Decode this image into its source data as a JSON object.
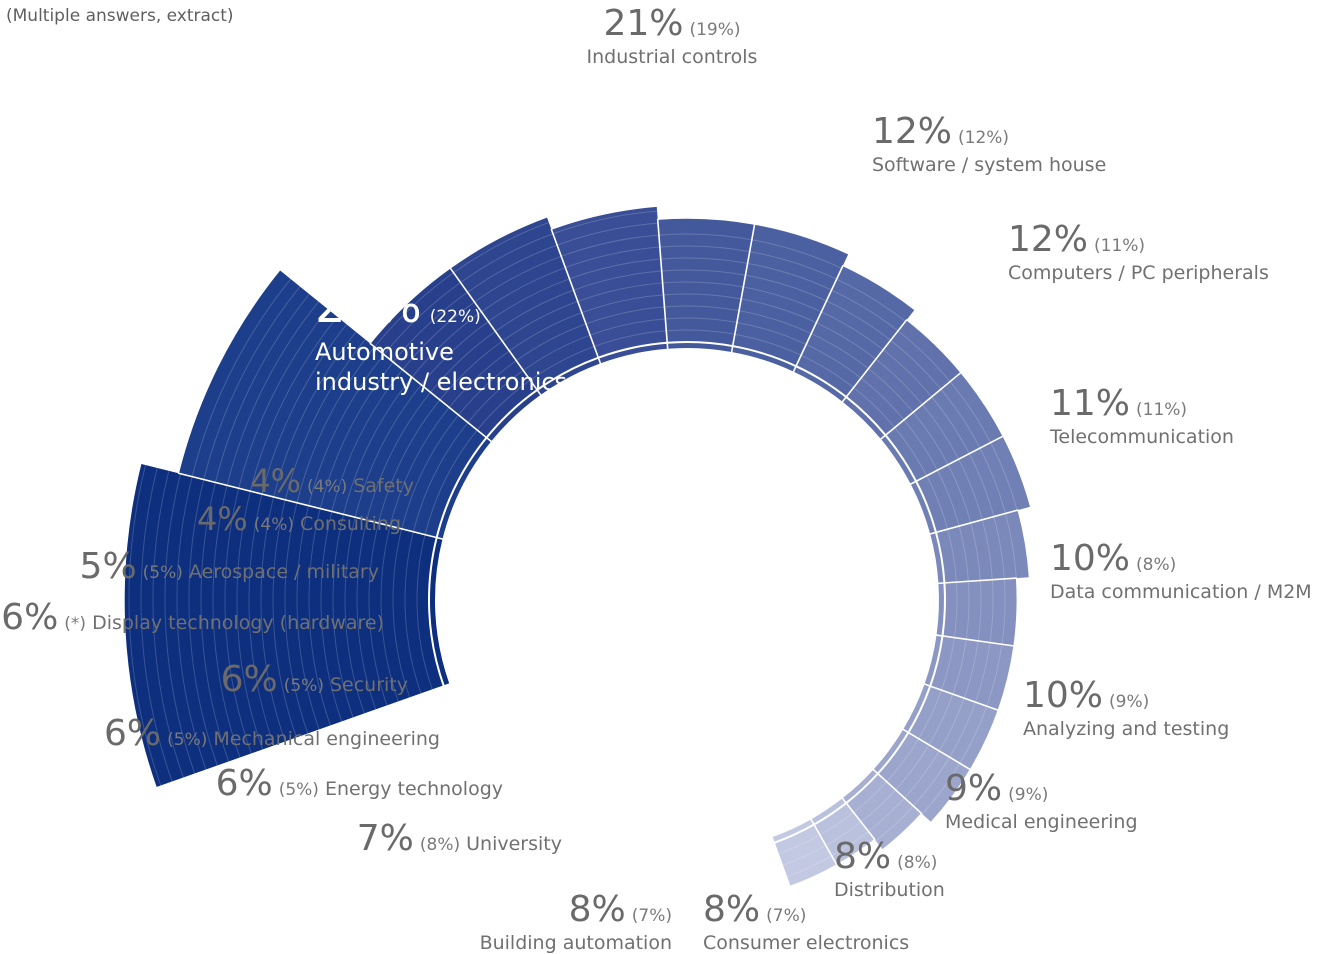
{
  "subtitle": "(Multiple answers, extract)",
  "chart_data": {
    "type": "polar_bar",
    "subtitle": "(Multiple answers, extract)",
    "value_unit": "%",
    "categories": [
      {
        "name": "Automotive industry / electronics",
        "value": 24,
        "previous": "(22%)",
        "color": "#0d2f7e"
      },
      {
        "name": "Industrial controls",
        "value": 21,
        "previous": "(19%)",
        "color": "#1d3e8a"
      },
      {
        "name": "Software / system house",
        "value": 12,
        "previous": "(12%)",
        "color": "#283f8c"
      },
      {
        "name": "Computers / PC peripherals",
        "value": 12,
        "previous": "(11%)",
        "color": "#2e4590"
      },
      {
        "name": "Telecommunication",
        "value": 11,
        "previous": "(11%)",
        "color": "#394e96"
      },
      {
        "name": "Data communication / M2M",
        "value": 10,
        "previous": "(8%)",
        "color": "#44599c"
      },
      {
        "name": "Analyzing and testing",
        "value": 10,
        "previous": "(9%)",
        "color": "#4b60a0"
      },
      {
        "name": "Medical engineering",
        "value": 9,
        "previous": "(9%)",
        "color": "#5569a6"
      },
      {
        "name": "Distribution",
        "value": 8,
        "previous": "(8%)",
        "color": "#6071ab"
      },
      {
        "name": "Consumer electronics",
        "value": 8,
        "previous": "(7%)",
        "color": "#6a7bb1"
      },
      {
        "name": "Building automation",
        "value": 8,
        "previous": "(7%)",
        "color": "#7080b5"
      },
      {
        "name": "University",
        "value": 7,
        "previous": "(8%)",
        "color": "#7b89ba"
      },
      {
        "name": "Energy technology",
        "value": 6,
        "previous": "(5%)",
        "color": "#8490bf"
      },
      {
        "name": "Mechanical engineering",
        "value": 6,
        "previous": "(5%)",
        "color": "#8c98c3"
      },
      {
        "name": "Security",
        "value": 6,
        "previous": "(5%)",
        "color": "#95a0c8"
      },
      {
        "name": "Display technology (hardware)",
        "value": 6,
        "previous": "(*)",
        "color": "#9ca6cc"
      },
      {
        "name": "Aerospace / military",
        "value": 5,
        "previous": "(5%)",
        "color": "#a7b0d2"
      },
      {
        "name": "Consulting",
        "value": 4,
        "previous": "(4%)",
        "color": "#bac1dd"
      },
      {
        "name": "Safety",
        "value": 4,
        "previous": "(4%)",
        "color": "#c3c9e2"
      }
    ]
  }
}
